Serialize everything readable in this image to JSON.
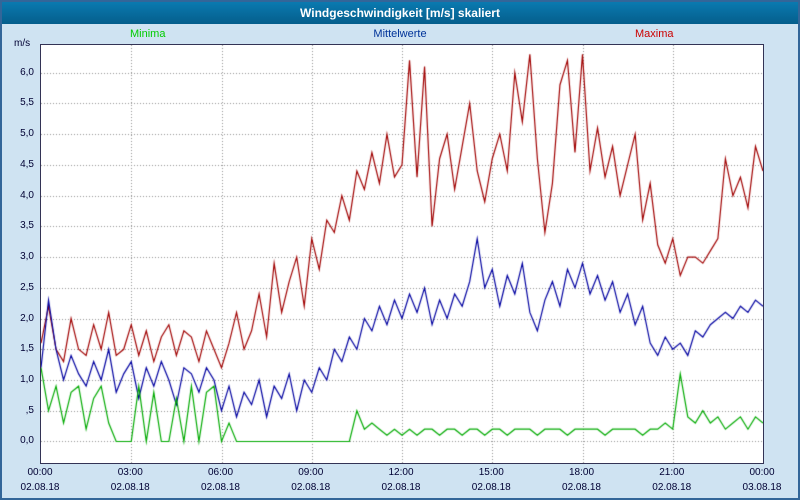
{
  "title": "Windgeschwindigkeit [m/s] skaliert",
  "legend": {
    "minima": "Minima",
    "mittelwerte": "Mittelwerte",
    "maxima": "Maxima"
  },
  "colors": {
    "background": "#cfe3f2",
    "frame_border": "#336699",
    "titlebar": "#0a6ea0",
    "grid": "#909090",
    "plot_border": "#333355",
    "tick_text": "#000033",
    "legend_minima": "#00cc00",
    "legend_mittelwerte": "#003399",
    "legend_maxima": "#cc0000"
  },
  "chart_data": {
    "type": "line",
    "title": "Windgeschwindigkeit [m/s] skaliert",
    "ylabel": "m/s",
    "xlabel": "",
    "grid": true,
    "legend_position": "top",
    "x_hours_range": [
      0,
      24
    ],
    "ylim": [
      -0.35,
      6.45
    ],
    "y_tick_values": [
      6.0,
      5.5,
      5.0,
      4.5,
      4.0,
      3.5,
      3.0,
      2.5,
      2.0,
      1.5,
      1.0,
      0.5,
      0.0
    ],
    "y_tick_labels": [
      "6,0",
      "5,5",
      "5,0",
      "4,5",
      "4,0",
      "3,5",
      "3,0",
      "2,5",
      "2,0",
      "1,5",
      "1,0",
      ",5",
      "0,0"
    ],
    "x_tick_hours": [
      0,
      3,
      6,
      9,
      12,
      15,
      18,
      21,
      24
    ],
    "x_tick_labels": [
      "00:00",
      "03:00",
      "06:00",
      "09:00",
      "12:00",
      "15:00",
      "18:00",
      "21:00",
      "00:00"
    ],
    "x_date_labels": [
      "02.08.18",
      "02.08.18",
      "02.08.18",
      "02.08.18",
      "02.08.18",
      "02.08.18",
      "02.08.18",
      "02.08.18",
      "03.08.18"
    ],
    "series": [
      {
        "name": "Maxima",
        "color": "#a00000",
        "values": [
          1.6,
          2.2,
          1.5,
          1.3,
          2.0,
          1.5,
          1.4,
          1.9,
          1.5,
          2.1,
          1.4,
          1.5,
          1.9,
          1.4,
          1.8,
          1.3,
          1.7,
          1.9,
          1.4,
          1.8,
          1.7,
          1.3,
          1.8,
          1.5,
          1.2,
          1.6,
          2.1,
          1.5,
          1.8,
          2.4,
          1.7,
          2.9,
          2.1,
          2.6,
          3.0,
          2.2,
          3.3,
          2.8,
          3.6,
          3.4,
          4.0,
          3.6,
          4.4,
          4.1,
          4.7,
          4.2,
          5.0,
          4.3,
          4.5,
          6.2,
          4.3,
          6.1,
          3.5,
          4.6,
          5.0,
          4.1,
          4.8,
          5.5,
          4.4,
          3.9,
          4.6,
          5.0,
          4.4,
          6.0,
          5.2,
          6.3,
          4.6,
          3.4,
          4.2,
          5.8,
          6.2,
          4.7,
          6.3,
          4.4,
          5.1,
          4.3,
          4.8,
          4.0,
          4.5,
          5.0,
          3.6,
          4.2,
          3.2,
          2.9,
          3.3,
          2.7,
          3.0,
          3.0,
          2.9,
          3.1,
          3.3,
          4.6,
          4.0,
          4.3,
          3.8,
          4.8,
          4.4
        ]
      },
      {
        "name": "Mittelwerte",
        "color": "#0000a0",
        "values": [
          1.2,
          2.3,
          1.5,
          1.0,
          1.4,
          1.1,
          0.9,
          1.3,
          1.0,
          1.5,
          0.8,
          1.1,
          1.3,
          0.7,
          1.2,
          0.9,
          1.3,
          1.0,
          0.6,
          1.2,
          1.1,
          0.8,
          1.2,
          1.0,
          0.5,
          0.9,
          0.4,
          0.8,
          0.6,
          1.0,
          0.4,
          0.9,
          0.7,
          1.1,
          0.5,
          1.0,
          0.8,
          1.2,
          1.0,
          1.5,
          1.3,
          1.7,
          1.5,
          2.0,
          1.8,
          2.2,
          1.9,
          2.3,
          2.0,
          2.4,
          2.1,
          2.5,
          1.9,
          2.3,
          2.0,
          2.4,
          2.2,
          2.6,
          3.3,
          2.5,
          2.8,
          2.2,
          2.7,
          2.4,
          2.9,
          2.1,
          1.8,
          2.3,
          2.6,
          2.2,
          2.8,
          2.5,
          2.9,
          2.4,
          2.7,
          2.3,
          2.6,
          2.1,
          2.4,
          1.9,
          2.2,
          1.6,
          1.4,
          1.7,
          1.5,
          1.6,
          1.4,
          1.8,
          1.7,
          1.9,
          2.0,
          2.1,
          2.0,
          2.2,
          2.1,
          2.3,
          2.2
        ]
      },
      {
        "name": "Minima",
        "color": "#00aa00",
        "values": [
          1.2,
          0.5,
          0.9,
          0.3,
          0.8,
          0.9,
          0.2,
          0.7,
          0.9,
          0.3,
          0.0,
          0.0,
          0.0,
          0.9,
          0.0,
          0.8,
          0.0,
          0.0,
          0.7,
          0.0,
          0.9,
          0.0,
          0.8,
          0.9,
          0.0,
          0.3,
          0.0,
          0.0,
          0.0,
          0.0,
          0.0,
          0.0,
          0.0,
          0.0,
          0.0,
          0.0,
          0.0,
          0.0,
          0.0,
          0.0,
          0.0,
          0.0,
          0.5,
          0.2,
          0.3,
          0.2,
          0.1,
          0.2,
          0.1,
          0.2,
          0.1,
          0.2,
          0.2,
          0.1,
          0.2,
          0.2,
          0.1,
          0.2,
          0.2,
          0.1,
          0.2,
          0.2,
          0.1,
          0.2,
          0.2,
          0.2,
          0.1,
          0.2,
          0.2,
          0.2,
          0.1,
          0.2,
          0.2,
          0.2,
          0.2,
          0.1,
          0.2,
          0.2,
          0.2,
          0.2,
          0.1,
          0.2,
          0.2,
          0.3,
          0.2,
          1.1,
          0.4,
          0.3,
          0.5,
          0.3,
          0.4,
          0.2,
          0.3,
          0.4,
          0.2,
          0.4,
          0.3
        ]
      }
    ]
  }
}
